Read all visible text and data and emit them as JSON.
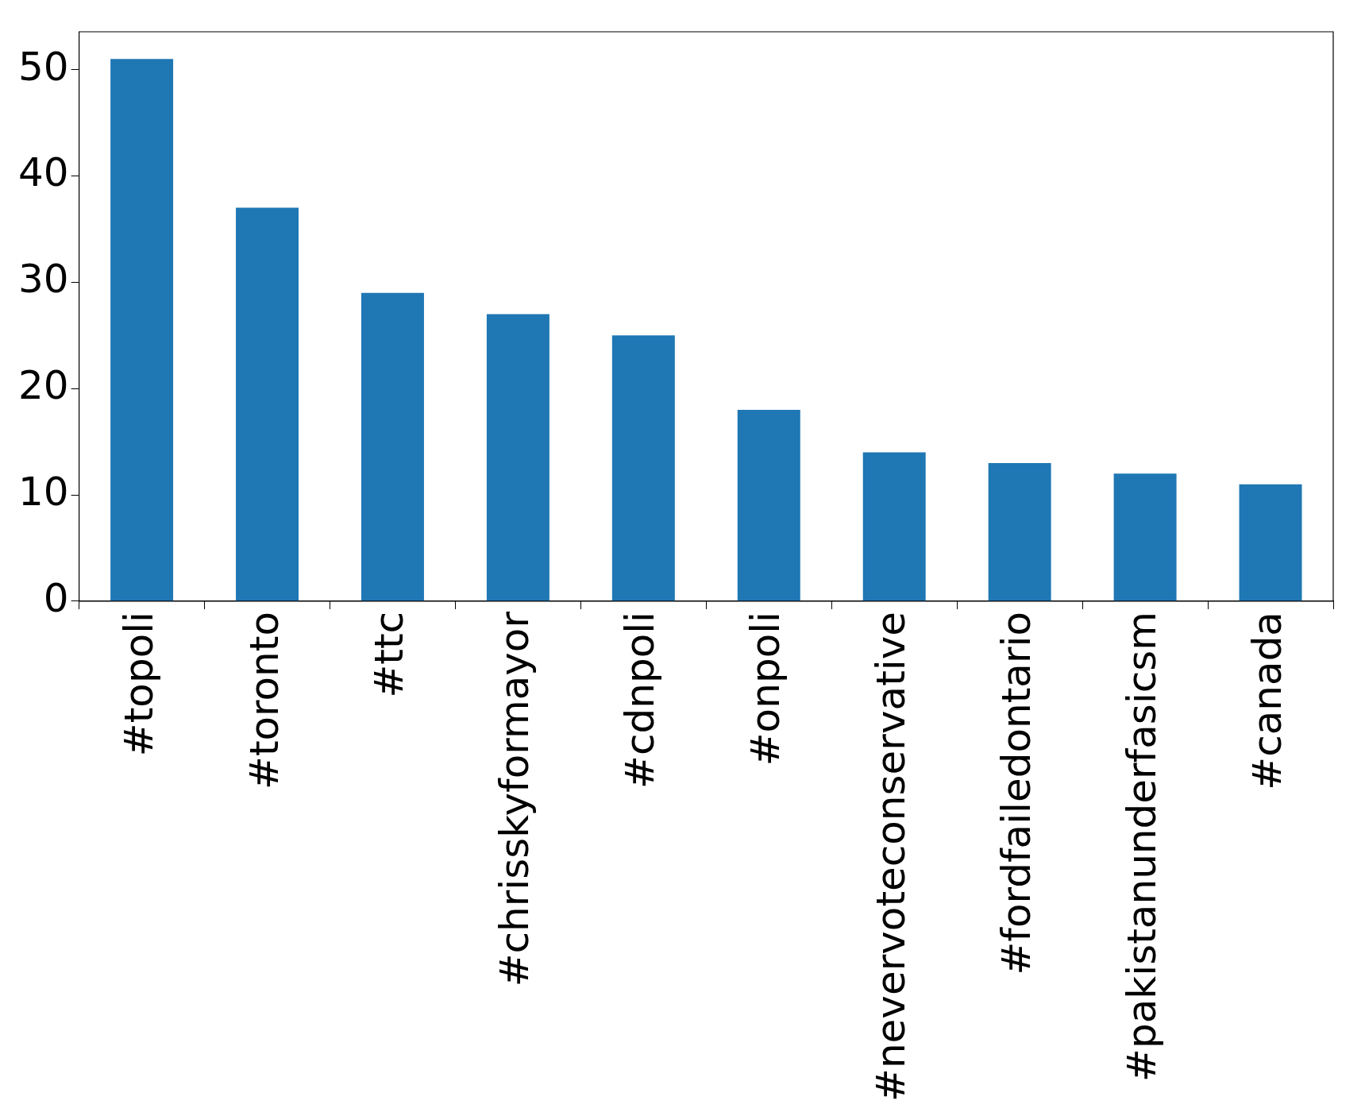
{
  "chart_data": {
    "type": "bar",
    "categories": [
      "#topoli",
      "#toronto",
      "#ttc",
      "#chrisskyformayor",
      "#cdnpoli",
      "#onpoli",
      "#nevervoteconservative",
      "#fordfailedontario",
      "#pakistanunderfasicsm",
      "#canada"
    ],
    "values": [
      51,
      37,
      29,
      27,
      25,
      18,
      14,
      13,
      12,
      11
    ],
    "color": "#1f77b4",
    "ylim": [
      0,
      53.55
    ],
    "yticks": [
      0,
      10,
      20,
      30,
      40,
      50
    ],
    "grid": false
  }
}
